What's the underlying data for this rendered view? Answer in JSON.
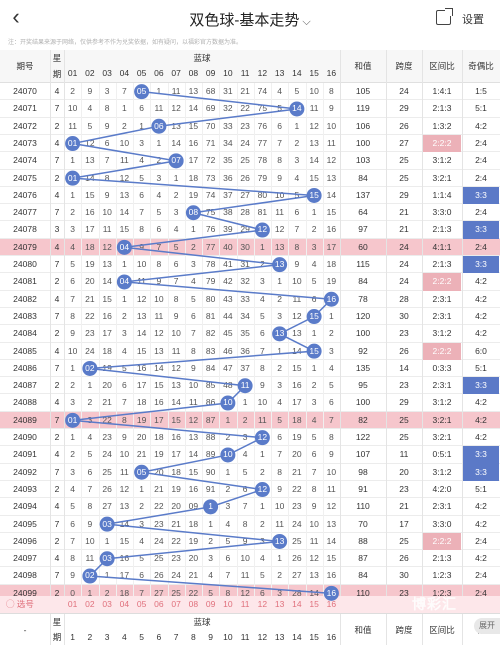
{
  "header": {
    "back_icon": "chevron-left-icon",
    "title": "双色球-基本走势",
    "title_caret": "⌵",
    "share_icon": "share-icon",
    "settings_label": "设置"
  },
  "notice": "注：开奖结果来源于网络，仅供参考不作为兑奖依据，如有疑问，以福彩官方数据为准。",
  "table": {
    "col_issue": "期号",
    "col_week_top": "星",
    "col_week_bot": "期",
    "col_red": "蓝球",
    "col_sum": "和值",
    "col_span": "跨度",
    "col_zone": "区间比",
    "col_odd": "奇偶比",
    "blue_headers": [
      "01",
      "02",
      "03",
      "04",
      "05",
      "06",
      "07",
      "08",
      "09",
      "10",
      "11",
      "12",
      "13",
      "14",
      "15",
      "16"
    ],
    "rows": [
      {
        "issue": "24070",
        "week": "4",
        "cells": [
          "2",
          "9",
          "3",
          "7",
          "05",
          "1",
          "11",
          "13",
          "68",
          "31",
          "21",
          "74",
          "4",
          "5",
          "10",
          "8"
        ],
        "hit": 5,
        "sum": "105",
        "span": "24",
        "zone": "1:4:1",
        "odd": "1:5",
        "oddBlue": false,
        "zonePink": false
      },
      {
        "issue": "24071",
        "week": "7",
        "cells": [
          "10",
          "4",
          "8",
          "1",
          "6",
          "11",
          "12",
          "14",
          "69",
          "32",
          "22",
          "75",
          "5",
          "14",
          "11",
          "9"
        ],
        "hit": 14,
        "sum": "119",
        "span": "29",
        "zone": "2:1:3",
        "odd": "5:1",
        "oddBlue": false,
        "zonePink": false
      },
      {
        "issue": "24072",
        "week": "2",
        "cells": [
          "11",
          "5",
          "9",
          "2",
          "1",
          "06",
          "13",
          "15",
          "70",
          "33",
          "23",
          "76",
          "6",
          "1",
          "12",
          "10"
        ],
        "hit": 6,
        "sum": "106",
        "span": "26",
        "zone": "1:3:2",
        "odd": "4:2",
        "oddBlue": false,
        "zonePink": false
      },
      {
        "issue": "24073",
        "week": "4",
        "cells": [
          "01",
          "12",
          "6",
          "10",
          "3",
          "1",
          "14",
          "16",
          "71",
          "34",
          "24",
          "77",
          "7",
          "2",
          "13",
          "11"
        ],
        "hit": 1,
        "sum": "100",
        "span": "27",
        "zone": "2:2:2",
        "odd": "2:4",
        "oddBlue": false,
        "zonePink": true
      },
      {
        "issue": "24074",
        "week": "7",
        "cells": [
          "1",
          "13",
          "7",
          "11",
          "4",
          "2",
          "07",
          "17",
          "72",
          "35",
          "25",
          "78",
          "8",
          "3",
          "14",
          "12"
        ],
        "hit": 7,
        "sum": "103",
        "span": "25",
        "zone": "3:1:2",
        "odd": "2:4",
        "oddBlue": false,
        "zonePink": false
      },
      {
        "issue": "24075",
        "week": "2",
        "cells": [
          "01",
          "14",
          "8",
          "12",
          "5",
          "3",
          "1",
          "18",
          "73",
          "36",
          "26",
          "79",
          "9",
          "4",
          "15",
          "13"
        ],
        "hit": 1,
        "sum": "84",
        "span": "25",
        "zone": "3:2:1",
        "odd": "2:4",
        "oddBlue": false,
        "zonePink": false
      },
      {
        "issue": "24076",
        "week": "4",
        "cells": [
          "1",
          "15",
          "9",
          "13",
          "6",
          "4",
          "2",
          "19",
          "74",
          "37",
          "27",
          "80",
          "10",
          "5",
          "15",
          "14"
        ],
        "hit": 15,
        "sum": "137",
        "span": "29",
        "zone": "1:1:4",
        "odd": "3:3",
        "oddBlue": true,
        "zonePink": false
      },
      {
        "issue": "24077",
        "week": "7",
        "cells": [
          "2",
          "16",
          "10",
          "14",
          "7",
          "5",
          "3",
          "08",
          "75",
          "38",
          "28",
          "81",
          "11",
          "6",
          "1",
          "15"
        ],
        "hit": 8,
        "sum": "64",
        "span": "21",
        "zone": "3:3:0",
        "odd": "2:4",
        "oddBlue": false,
        "zonePink": false
      },
      {
        "issue": "24078",
        "week": "3",
        "cells": [
          "3",
          "17",
          "11",
          "15",
          "8",
          "6",
          "4",
          "1",
          "76",
          "39",
          "29",
          "12",
          "12",
          "7",
          "2",
          "16"
        ],
        "hit": 12,
        "sum": "97",
        "span": "21",
        "zone": "2:1:3",
        "odd": "3:3",
        "oddBlue": true,
        "zonePink": false
      },
      {
        "issue": "24079",
        "week": "4",
        "cells": [
          "4",
          "18",
          "12",
          "04",
          "9",
          "7",
          "5",
          "2",
          "77",
          "40",
          "30",
          "1",
          "13",
          "8",
          "3",
          "17"
        ],
        "hit": 4,
        "sum": "60",
        "span": "24",
        "zone": "4:1:1",
        "odd": "2:4",
        "oddBlue": false,
        "zonePink": false,
        "pink": true
      },
      {
        "issue": "24080",
        "week": "7",
        "cells": [
          "5",
          "19",
          "13",
          "1",
          "10",
          "8",
          "6",
          "3",
          "78",
          "41",
          "31",
          "2",
          "13",
          "9",
          "4",
          "18"
        ],
        "hit": 13,
        "sum": "115",
        "span": "24",
        "zone": "2:1:3",
        "odd": "3:3",
        "oddBlue": true,
        "zonePink": false
      },
      {
        "issue": "24081",
        "week": "2",
        "cells": [
          "6",
          "20",
          "14",
          "04",
          "11",
          "9",
          "7",
          "4",
          "79",
          "42",
          "32",
          "3",
          "1",
          "10",
          "5",
          "19"
        ],
        "hit": 4,
        "sum": "84",
        "span": "24",
        "zone": "2:2:2",
        "odd": "4:2",
        "oddBlue": false,
        "zonePink": true
      },
      {
        "issue": "24082",
        "week": "4",
        "cells": [
          "7",
          "21",
          "15",
          "1",
          "12",
          "10",
          "8",
          "5",
          "80",
          "43",
          "33",
          "4",
          "2",
          "11",
          "6",
          "16"
        ],
        "hit": 16,
        "sum": "78",
        "span": "28",
        "zone": "2:3:1",
        "odd": "4:2",
        "oddBlue": false,
        "zonePink": false
      },
      {
        "issue": "24083",
        "week": "7",
        "cells": [
          "8",
          "22",
          "16",
          "2",
          "13",
          "11",
          "9",
          "6",
          "81",
          "44",
          "34",
          "5",
          "3",
          "12",
          "15",
          "1"
        ],
        "hit": 15,
        "sum": "120",
        "span": "30",
        "zone": "2:3:1",
        "odd": "4:2",
        "oddBlue": false,
        "zonePink": false
      },
      {
        "issue": "24084",
        "week": "2",
        "cells": [
          "9",
          "23",
          "17",
          "3",
          "14",
          "12",
          "10",
          "7",
          "82",
          "45",
          "35",
          "6",
          "13",
          "13",
          "1",
          "2"
        ],
        "hit": 13,
        "sum": "100",
        "span": "23",
        "zone": "3:1:2",
        "odd": "4:2",
        "oddBlue": false,
        "zonePink": false
      },
      {
        "issue": "24085",
        "week": "4",
        "cells": [
          "10",
          "24",
          "18",
          "4",
          "15",
          "13",
          "11",
          "8",
          "83",
          "46",
          "36",
          "7",
          "1",
          "14",
          "15",
          "3"
        ],
        "hit": 15,
        "sum": "92",
        "span": "26",
        "zone": "2:2:2",
        "odd": "6:0",
        "oddBlue": false,
        "zonePink": true
      },
      {
        "issue": "24086",
        "week": "7",
        "cells": [
          "1",
          "02",
          "19",
          "5",
          "16",
          "14",
          "12",
          "9",
          "84",
          "47",
          "37",
          "8",
          "2",
          "15",
          "1",
          "4"
        ],
        "hit": 2,
        "sum": "135",
        "span": "14",
        "zone": "0:3:3",
        "odd": "5:1",
        "oddBlue": false,
        "zonePink": false
      },
      {
        "issue": "24087",
        "week": "2",
        "cells": [
          "2",
          "1",
          "20",
          "6",
          "17",
          "15",
          "13",
          "10",
          "85",
          "48",
          "11",
          "9",
          "3",
          "16",
          "2",
          "5"
        ],
        "hit": 11,
        "sum": "95",
        "span": "23",
        "zone": "2:3:1",
        "odd": "3:3",
        "oddBlue": true,
        "zonePink": false
      },
      {
        "issue": "24088",
        "week": "4",
        "cells": [
          "3",
          "2",
          "21",
          "7",
          "18",
          "16",
          "14",
          "11",
          "86",
          "10",
          "1",
          "10",
          "4",
          "17",
          "3",
          "6"
        ],
        "hit": 10,
        "sum": "100",
        "span": "29",
        "zone": "3:1:2",
        "odd": "4:2",
        "oddBlue": false,
        "zonePink": false
      },
      {
        "issue": "24089",
        "week": "7",
        "cells": [
          "01",
          "3",
          "22",
          "8",
          "19",
          "17",
          "15",
          "12",
          "87",
          "1",
          "2",
          "11",
          "5",
          "18",
          "4",
          "7"
        ],
        "hit": 1,
        "sum": "82",
        "span": "25",
        "zone": "3:2:1",
        "odd": "4:2",
        "oddBlue": false,
        "zonePink": false,
        "pink": true
      },
      {
        "issue": "24090",
        "week": "2",
        "cells": [
          "1",
          "4",
          "23",
          "9",
          "20",
          "18",
          "16",
          "13",
          "88",
          "2",
          "3",
          "12",
          "6",
          "19",
          "5",
          "8"
        ],
        "hit": 12,
        "sum": "122",
        "span": "25",
        "zone": "3:2:1",
        "odd": "4:2",
        "oddBlue": false,
        "zonePink": false
      },
      {
        "issue": "24091",
        "week": "4",
        "cells": [
          "2",
          "5",
          "24",
          "10",
          "21",
          "19",
          "17",
          "14",
          "89",
          "10",
          "4",
          "1",
          "7",
          "20",
          "6",
          "9"
        ],
        "hit": 10,
        "sum": "107",
        "span": "11",
        "zone": "0:5:1",
        "odd": "3:3",
        "oddBlue": true,
        "zonePink": false
      },
      {
        "issue": "24092",
        "week": "7",
        "cells": [
          "3",
          "6",
          "25",
          "11",
          "05",
          "20",
          "18",
          "15",
          "90",
          "1",
          "5",
          "2",
          "8",
          "21",
          "7",
          "10"
        ],
        "hit": 5,
        "sum": "98",
        "span": "20",
        "zone": "3:1:2",
        "odd": "3:3",
        "oddBlue": true,
        "zonePink": false
      },
      {
        "issue": "24093",
        "week": "2",
        "cells": [
          "4",
          "7",
          "26",
          "12",
          "1",
          "21",
          "19",
          "16",
          "91",
          "2",
          "6",
          "12",
          "9",
          "22",
          "8",
          "11"
        ],
        "hit": 12,
        "sum": "91",
        "span": "23",
        "zone": "4:2:0",
        "odd": "5:1",
        "oddBlue": false,
        "zonePink": false
      },
      {
        "issue": "24094",
        "week": "4",
        "cells": [
          "5",
          "8",
          "27",
          "13",
          "2",
          "22",
          "20",
          "09",
          "1",
          "3",
          "7",
          "1",
          "10",
          "23",
          "9",
          "12"
        ],
        "hit": 9,
        "sum": "110",
        "span": "21",
        "zone": "2:3:1",
        "odd": "4:2",
        "oddBlue": false,
        "zonePink": false
      },
      {
        "issue": "24095",
        "week": "7",
        "cells": [
          "6",
          "9",
          "03",
          "14",
          "3",
          "23",
          "21",
          "18",
          "1",
          "4",
          "8",
          "2",
          "11",
          "24",
          "10",
          "13"
        ],
        "hit": 3,
        "sum": "70",
        "span": "17",
        "zone": "3:3:0",
        "odd": "4:2",
        "oddBlue": false,
        "zonePink": false
      },
      {
        "issue": "24096",
        "week": "2",
        "cells": [
          "7",
          "10",
          "1",
          "15",
          "4",
          "24",
          "22",
          "19",
          "2",
          "5",
          "9",
          "3",
          "13",
          "25",
          "11",
          "14"
        ],
        "hit": 13,
        "sum": "88",
        "span": "25",
        "zone": "2:2:2",
        "odd": "2:4",
        "oddBlue": false,
        "zonePink": true
      },
      {
        "issue": "24097",
        "week": "4",
        "cells": [
          "8",
          "11",
          "03",
          "16",
          "5",
          "25",
          "23",
          "20",
          "3",
          "6",
          "10",
          "4",
          "1",
          "26",
          "12",
          "15"
        ],
        "hit": 3,
        "sum": "87",
        "span": "26",
        "zone": "2:1:3",
        "odd": "4:2",
        "oddBlue": false,
        "zonePink": false
      },
      {
        "issue": "24098",
        "week": "7",
        "cells": [
          "9",
          "02",
          "1",
          "17",
          "6",
          "26",
          "24",
          "21",
          "4",
          "7",
          "11",
          "5",
          "2",
          "27",
          "13",
          "16"
        ],
        "hit": 2,
        "sum": "84",
        "span": "30",
        "zone": "1:2:3",
        "odd": "2:4",
        "oddBlue": false,
        "zonePink": false
      },
      {
        "issue": "24099",
        "week": "2",
        "cells": [
          "0",
          "1",
          "2",
          "18",
          "7",
          "27",
          "25",
          "22",
          "5",
          "8",
          "12",
          "6",
          "3",
          "28",
          "14",
          "16"
        ],
        "hit": 16,
        "sum": "110",
        "span": "23",
        "zone": "1:2:3",
        "odd": "2:4",
        "oddBlue": false,
        "zonePink": false,
        "pink": true
      }
    ]
  },
  "footer": {
    "select_label": "◯ 选号",
    "select_numbers": [
      "01",
      "02",
      "03",
      "04",
      "05",
      "06",
      "07",
      "08",
      "09",
      "10",
      "11",
      "12",
      "13",
      "14",
      "15",
      "16"
    ],
    "issue_label": "-",
    "week_top": "星",
    "week_bot": "期",
    "red_label": "蓝球",
    "nums": [
      "1",
      "2",
      "3",
      "4",
      "5",
      "6",
      "7",
      "8",
      "9",
      "10",
      "11",
      "12",
      "13",
      "14",
      "15",
      "16"
    ],
    "sum": "和值",
    "span": "跨度",
    "zone": "区间比",
    "odd": "奇",
    "expand_label": "展开",
    "watermark": "博彩汇"
  },
  "colors": {
    "ball": "#5a7bc9",
    "line": "#5a7bc9",
    "pink_row": "#f6c6cc",
    "zone_pink": "#ecb1b8",
    "odd_blue": "#5b79c7"
  }
}
